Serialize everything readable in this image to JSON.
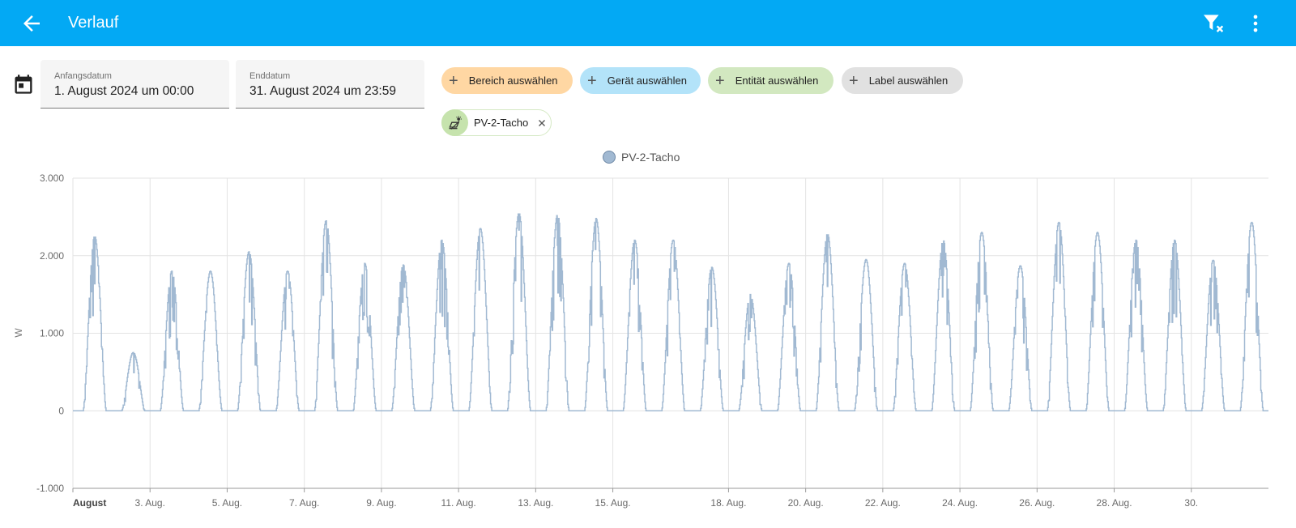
{
  "header": {
    "title": "Verlauf",
    "back_icon": "arrow-left-icon",
    "filter_icon": "filter-remove-icon",
    "menu_icon": "dots-vertical-icon"
  },
  "date_picker": {
    "icon": "calendar-icon",
    "start": {
      "label": "Anfangsdatum",
      "value": "1. August 2024 um 00:00"
    },
    "end": {
      "label": "Enddatum",
      "value": "31. August 2024 um 23:59"
    }
  },
  "target_chips": [
    {
      "label": "Bereich auswählen",
      "color": "#ffd7a3"
    },
    {
      "label": "Gerät auswählen",
      "color": "#b3e3f9"
    },
    {
      "label": "Entität auswählen",
      "color": "#d2e8c0"
    },
    {
      "label": "Label auswählen",
      "color": "#e1e1e1"
    }
  ],
  "selected_entity": {
    "name": "PV-2-Tacho",
    "icon": "solar-power-icon"
  },
  "chart_data": {
    "type": "line",
    "title": "",
    "xlabel": "",
    "ylabel": "W",
    "ylim": [
      -1000,
      3000
    ],
    "yticks": [
      {
        "value": 3000,
        "label": "3.000"
      },
      {
        "value": 2000,
        "label": "2.000"
      },
      {
        "value": 1000,
        "label": "1.000"
      },
      {
        "value": 0,
        "label": "0"
      },
      {
        "value": -1000,
        "label": "-1.000"
      }
    ],
    "xlim": [
      1,
      32
    ],
    "xticks": [
      {
        "day": 1,
        "label": "August",
        "bold": true
      },
      {
        "day": 3,
        "label": "3. Aug."
      },
      {
        "day": 5,
        "label": "5. Aug."
      },
      {
        "day": 7,
        "label": "7. Aug."
      },
      {
        "day": 9,
        "label": "9. Aug."
      },
      {
        "day": 11,
        "label": "11. Aug."
      },
      {
        "day": 13,
        "label": "13. Aug."
      },
      {
        "day": 15,
        "label": "15. Aug."
      },
      {
        "day": 18,
        "label": "18. Aug."
      },
      {
        "day": 20,
        "label": "20. Aug."
      },
      {
        "day": 22,
        "label": "22. Aug."
      },
      {
        "day": 24,
        "label": "24. Aug."
      },
      {
        "day": 26,
        "label": "26. Aug."
      },
      {
        "day": 28,
        "label": "28. Aug."
      },
      {
        "day": 30,
        "label": "30."
      }
    ],
    "grid": true,
    "legend_position": "top-center",
    "series": [
      {
        "name": "PV-2-Tacho",
        "color": "#a1b9d2",
        "daily_peaks_w": [
          2250,
          750,
          1800,
          1800,
          2050,
          1800,
          2450,
          1900,
          1880,
          2200,
          2350,
          2550,
          2530,
          2480,
          2200,
          2200,
          1850,
          1500,
          1900,
          2280,
          1950,
          1900,
          2200,
          2300,
          1870,
          2430,
          2300,
          2200,
          2200,
          1940,
          2430
        ]
      }
    ]
  }
}
